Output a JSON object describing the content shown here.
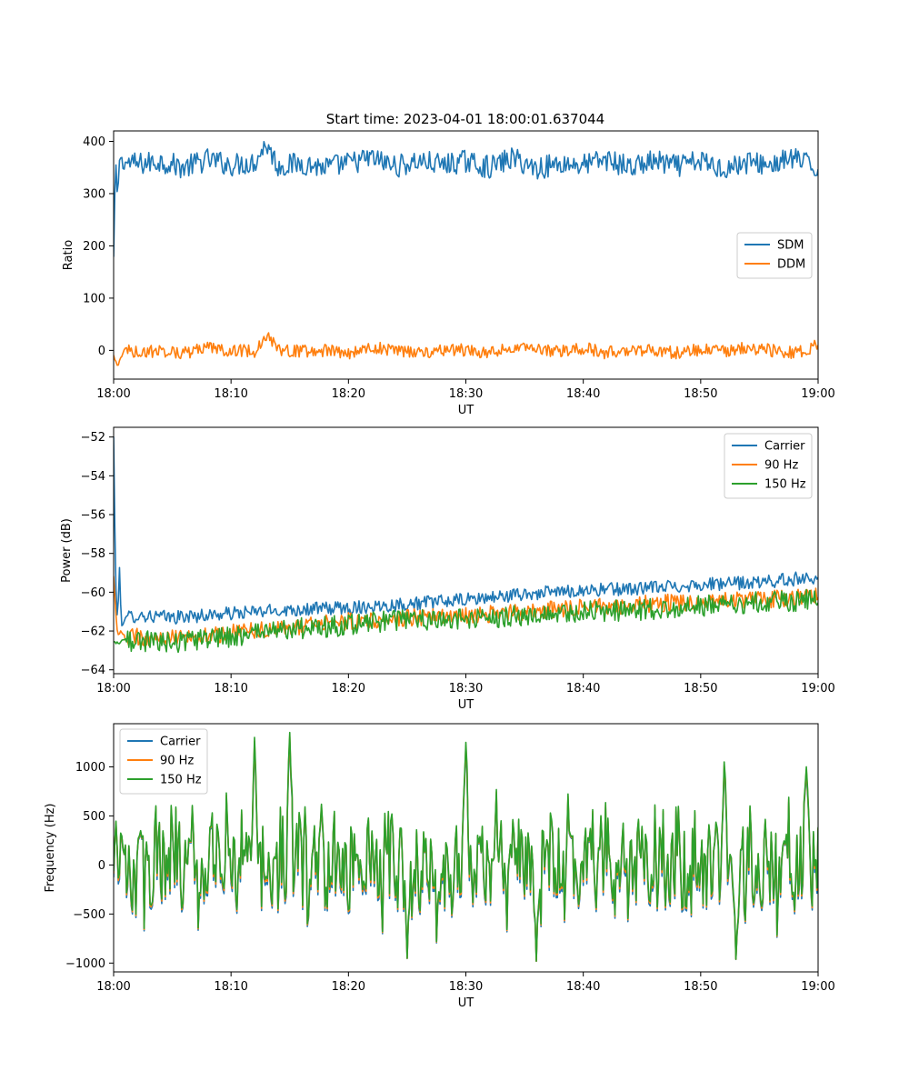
{
  "figure": {
    "title": "Start time: 2023-04-01 18:00:01.637044"
  },
  "colors": {
    "blue": "#1f77b4",
    "orange": "#ff7f0e",
    "green": "#2ca02c"
  },
  "chart_data": [
    {
      "type": "line",
      "title": "Start time: 2023-04-01 18:00:01.637044",
      "xlabel": "UT",
      "ylabel": "Ratio",
      "xlim": [
        "18:00",
        "19:00"
      ],
      "xticks": [
        "18:00",
        "18:10",
        "18:20",
        "18:30",
        "18:40",
        "18:50",
        "19:00"
      ],
      "ylim": [
        -55,
        420
      ],
      "yticks": [
        0,
        100,
        200,
        300,
        400
      ],
      "grid": false,
      "legend": "center-right",
      "series": [
        {
          "name": "SDM",
          "color": "#1f77b4",
          "x": [
            "18:00",
            "18:00:10",
            "18:00:20",
            "18:00:30",
            "18:00:40",
            "18:00:50",
            "18:01",
            "18:02",
            "18:04",
            "18:06",
            "18:08",
            "18:10",
            "18:12",
            "18:13",
            "18:14",
            "18:16",
            "18:18",
            "18:20",
            "18:22",
            "18:24",
            "18:26",
            "18:28",
            "18:30",
            "18:32",
            "18:34",
            "18:36",
            "18:38",
            "18:40",
            "18:42",
            "18:44",
            "18:46",
            "18:48",
            "18:50",
            "18:52",
            "18:54",
            "18:56",
            "18:58",
            "19:00"
          ],
          "values": [
            178,
            372,
            285,
            365,
            372,
            345,
            360,
            356,
            362,
            350,
            365,
            355,
            360,
            396,
            352,
            358,
            350,
            358,
            368,
            352,
            362,
            355,
            362,
            350,
            368,
            348,
            358,
            355,
            365,
            350,
            362,
            352,
            362,
            348,
            360,
            355,
            368,
            345
          ],
          "noise": 22
        },
        {
          "name": "DDM",
          "color": "#ff7f0e",
          "x": [
            "18:00",
            "18:00:20",
            "18:01",
            "18:02",
            "18:04",
            "18:06",
            "18:08",
            "18:10",
            "18:12",
            "18:13",
            "18:14",
            "18:16",
            "18:18",
            "18:20",
            "18:22",
            "18:24",
            "18:26",
            "18:28",
            "18:30",
            "18:32",
            "18:34",
            "18:36",
            "18:38",
            "18:40",
            "18:42",
            "18:44",
            "18:46",
            "18:48",
            "18:50",
            "18:52",
            "18:54",
            "18:56",
            "18:58",
            "19:00"
          ],
          "values": [
            -10,
            -30,
            5,
            -5,
            0,
            -5,
            5,
            0,
            -2,
            30,
            2,
            -2,
            0,
            -5,
            5,
            0,
            -5,
            2,
            0,
            -5,
            5,
            0,
            -2,
            5,
            -5,
            2,
            0,
            -5,
            2,
            -2,
            5,
            0,
            -5,
            10
          ],
          "noise": 12
        }
      ]
    },
    {
      "type": "line",
      "title": "",
      "xlabel": "UT",
      "ylabel": "Power (dB)",
      "xlim": [
        "18:00",
        "19:00"
      ],
      "xticks": [
        "18:00",
        "18:10",
        "18:20",
        "18:30",
        "18:40",
        "18:50",
        "19:00"
      ],
      "ylim": [
        -64.2,
        -51.5
      ],
      "yticks": [
        -64,
        -62,
        -60,
        -58,
        -56,
        -54,
        -52
      ],
      "grid": false,
      "legend": "top-right",
      "series": [
        {
          "name": "Carrier",
          "color": "#1f77b4",
          "x": [
            "18:00",
            "18:00:10",
            "18:00:20",
            "18:00:30",
            "18:00:40",
            "18:01",
            "18:02",
            "18:05",
            "18:10",
            "18:15",
            "18:20",
            "18:25",
            "18:30",
            "18:35",
            "18:40",
            "18:45",
            "18:50",
            "18:55",
            "19:00"
          ],
          "values": [
            -52.0,
            -59.5,
            -61.5,
            -58.8,
            -61.8,
            -61.3,
            -61.2,
            -61.3,
            -61.1,
            -60.9,
            -60.8,
            -60.6,
            -60.4,
            -60.1,
            -59.9,
            -59.8,
            -59.6,
            -59.5,
            -59.2
          ],
          "noise": 0.35
        },
        {
          "name": "90 Hz",
          "color": "#ff7f0e",
          "x": [
            "18:00",
            "18:00:20",
            "18:00:40",
            "18:01",
            "18:02",
            "18:05",
            "18:10",
            "18:15",
            "18:20",
            "18:25",
            "18:30",
            "18:35",
            "18:40",
            "18:45",
            "18:50",
            "18:55",
            "19:00"
          ],
          "values": [
            -59.2,
            -62.3,
            -62.0,
            -62.4,
            -62.3,
            -62.4,
            -62.1,
            -61.8,
            -61.5,
            -61.3,
            -61.2,
            -61.0,
            -60.8,
            -60.6,
            -60.5,
            -60.4,
            -60.2
          ],
          "noise": 0.45
        },
        {
          "name": "150 Hz",
          "color": "#2ca02c",
          "x": [
            "18:00",
            "18:01",
            "18:02",
            "18:05",
            "18:10",
            "18:15",
            "18:20",
            "18:25",
            "18:30",
            "18:35",
            "18:40",
            "18:45",
            "18:50",
            "18:55",
            "19:00"
          ],
          "values": [
            -62.6,
            -62.5,
            -62.5,
            -62.6,
            -62.3,
            -61.9,
            -61.7,
            -61.4,
            -61.4,
            -61.2,
            -61.0,
            -60.9,
            -60.7,
            -60.5,
            -60.4
          ],
          "noise": 0.55
        }
      ]
    },
    {
      "type": "line",
      "title": "",
      "xlabel": "UT",
      "ylabel": "Frequency (Hz)",
      "xlim": [
        "18:00",
        "19:00"
      ],
      "xticks": [
        "18:00",
        "18:10",
        "18:20",
        "18:30",
        "18:40",
        "18:50",
        "19:00"
      ],
      "ylim": [
        -1090,
        1440
      ],
      "yticks": [
        -1000,
        -500,
        0,
        500,
        1000
      ],
      "grid": false,
      "legend": "top-left",
      "series": [
        {
          "name": "Carrier",
          "color": "#1f77b4",
          "offset_hz": -70
        },
        {
          "name": "90 Hz",
          "color": "#ff7f0e",
          "offset_hz": -30
        },
        {
          "name": "150 Hz",
          "color": "#2ca02c",
          "offset_hz": 0
        }
      ],
      "peaks": [
        {
          "x": "18:12",
          "value": 1300
        },
        {
          "x": "18:15",
          "value": 1350
        },
        {
          "x": "18:30",
          "value": 1250
        },
        {
          "x": "18:52",
          "value": 1050
        },
        {
          "x": "18:59",
          "value": 1000
        },
        {
          "x": "18:36",
          "value": -980
        },
        {
          "x": "18:25",
          "value": -950
        },
        {
          "x": "18:53",
          "value": -960
        }
      ]
    }
  ]
}
